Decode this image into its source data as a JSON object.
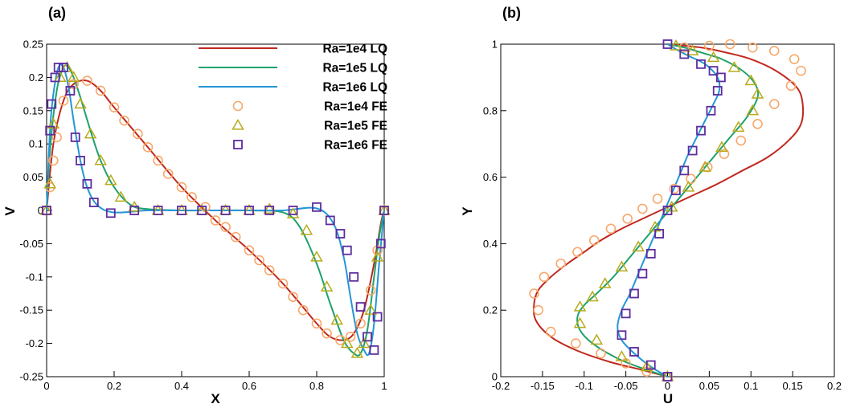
{
  "colors": {
    "red": "#c0281e",
    "green": "#1fa16b",
    "blue": "#2596d6",
    "orange": "#f6a86b",
    "olive": "#b8aa1a",
    "purple": "#5d2c9e"
  },
  "chart_data": [
    {
      "panel": "(a)",
      "type": "line",
      "xlabel": "X",
      "ylabel": "V",
      "xlim": [
        0,
        1
      ],
      "ylim": [
        -0.25,
        0.25
      ],
      "xticks": [
        "0",
        "0.2",
        "0.4",
        "0.6",
        "0.8",
        "1"
      ],
      "yticks": [
        "-0.25",
        "-0.2",
        "-0.15",
        "-0.1",
        "-0.05",
        "0",
        "0.05",
        "0.1",
        "0.15",
        "0.2",
        "0.25"
      ],
      "legend": {
        "position": "top-right",
        "entries": [
          "Ra=1e4 LQ",
          "Ra=1e5 LQ",
          "Ra=1e6 LQ",
          "Ra=1e4 FE",
          "Ra=1e5 FE",
          "Ra=1e6 FE"
        ]
      },
      "series": [
        {
          "name": "Ra=1e4 LQ",
          "kind": "line",
          "color_key": "red",
          "x": [
            0,
            0.02,
            0.05,
            0.08,
            0.12,
            0.16,
            0.2,
            0.3,
            0.4,
            0.5,
            0.6,
            0.7,
            0.8,
            0.84,
            0.88,
            0.91,
            0.94,
            0.97,
            0.99,
            1
          ],
          "y": [
            0,
            0.1,
            0.165,
            0.19,
            0.195,
            0.18,
            0.155,
            0.095,
            0.035,
            -0.015,
            -0.06,
            -0.11,
            -0.17,
            -0.19,
            -0.195,
            -0.185,
            -0.15,
            -0.08,
            -0.02,
            0
          ]
        },
        {
          "name": "Ra=1e5 LQ",
          "kind": "line",
          "color_key": "green",
          "x": [
            0,
            0.01,
            0.03,
            0.05,
            0.065,
            0.08,
            0.1,
            0.13,
            0.16,
            0.2,
            0.25,
            0.3,
            0.4,
            0.5,
            0.6,
            0.7,
            0.75,
            0.8,
            0.84,
            0.88,
            0.91,
            0.93,
            0.95,
            0.97,
            0.985,
            1
          ],
          "y": [
            0,
            0.09,
            0.18,
            0.215,
            0.215,
            0.2,
            0.17,
            0.12,
            0.075,
            0.035,
            0.008,
            0.002,
            0,
            0,
            0,
            -0.003,
            -0.025,
            -0.08,
            -0.14,
            -0.195,
            -0.215,
            -0.215,
            -0.18,
            -0.1,
            -0.04,
            0
          ]
        },
        {
          "name": "Ra=1e6 LQ",
          "kind": "line",
          "color_key": "blue",
          "x": [
            0,
            0.01,
            0.02,
            0.035,
            0.05,
            0.065,
            0.08,
            0.1,
            0.12,
            0.15,
            0.2,
            0.3,
            0.4,
            0.5,
            0.6,
            0.7,
            0.8,
            0.85,
            0.88,
            0.9,
            0.92,
            0.94,
            0.955,
            0.97,
            0.985,
            1
          ],
          "y": [
            0,
            0.12,
            0.175,
            0.215,
            0.215,
            0.185,
            0.135,
            0.075,
            0.035,
            0.008,
            -0.003,
            0,
            0,
            0,
            0,
            0,
            0.003,
            -0.02,
            -0.07,
            -0.13,
            -0.185,
            -0.21,
            -0.215,
            -0.17,
            -0.08,
            0
          ]
        },
        {
          "name": "Ra=1e4 FE",
          "kind": "marker",
          "marker": "circle",
          "color_key": "orange",
          "x": [
            0,
            0.01,
            0.02,
            0.03,
            0.05,
            0.08,
            0.12,
            0.16,
            0.2,
            0.23,
            0.27,
            0.3,
            0.33,
            0.36,
            0.4,
            0.43,
            0.47,
            0.5,
            0.53,
            0.56,
            0.6,
            0.63,
            0.66,
            0.7,
            0.73,
            0.76,
            0.8,
            0.83,
            0.87,
            0.9,
            0.93,
            0.96,
            0.98,
            1
          ],
          "y": [
            0,
            0.035,
            0.075,
            0.11,
            0.165,
            0.19,
            0.195,
            0.18,
            0.155,
            0.135,
            0.115,
            0.095,
            0.075,
            0.055,
            0.035,
            0.02,
            0.005,
            -0.015,
            -0.025,
            -0.04,
            -0.06,
            -0.075,
            -0.09,
            -0.11,
            -0.13,
            -0.15,
            -0.17,
            -0.185,
            -0.195,
            -0.19,
            -0.17,
            -0.12,
            -0.06,
            0
          ]
        },
        {
          "name": "Ra=1e5 FE",
          "kind": "marker",
          "marker": "triangle",
          "color_key": "olive",
          "x": [
            0,
            0.01,
            0.02,
            0.04,
            0.06,
            0.08,
            0.1,
            0.13,
            0.16,
            0.19,
            0.22,
            0.26,
            0.33,
            0.4,
            0.46,
            0.53,
            0.6,
            0.66,
            0.73,
            0.77,
            0.8,
            0.83,
            0.86,
            0.89,
            0.92,
            0.94,
            0.96,
            0.98,
            1
          ],
          "y": [
            0,
            0.04,
            0.13,
            0.2,
            0.215,
            0.2,
            0.16,
            0.115,
            0.075,
            0.045,
            0.02,
            0.005,
            0,
            0,
            0,
            0,
            0,
            0.002,
            -0.005,
            -0.03,
            -0.07,
            -0.115,
            -0.165,
            -0.2,
            -0.215,
            -0.2,
            -0.15,
            -0.07,
            0
          ]
        },
        {
          "name": "Ra=1e6 FE",
          "kind": "marker",
          "marker": "square",
          "color_key": "purple",
          "x": [
            0,
            0.01,
            0.015,
            0.025,
            0.035,
            0.05,
            0.07,
            0.085,
            0.1,
            0.12,
            0.14,
            0.19,
            0.26,
            0.33,
            0.4,
            0.46,
            0.53,
            0.6,
            0.66,
            0.73,
            0.8,
            0.84,
            0.87,
            0.89,
            0.91,
            0.93,
            0.95,
            0.97,
            0.98,
            0.99,
            1
          ],
          "y": [
            0,
            0.12,
            0.16,
            0.2,
            0.215,
            0.215,
            0.18,
            0.11,
            0.075,
            0.04,
            0.012,
            -0.004,
            0,
            0,
            0,
            0,
            0,
            0,
            0,
            0,
            0.005,
            -0.015,
            -0.035,
            -0.06,
            -0.1,
            -0.145,
            -0.19,
            -0.21,
            -0.16,
            -0.05,
            0
          ]
        }
      ]
    },
    {
      "panel": "(b)",
      "type": "line",
      "xlabel": "U",
      "ylabel": "Y",
      "xlim": [
        -0.2,
        0.2
      ],
      "ylim": [
        0,
        1
      ],
      "xticks": [
        "-0.2",
        "-0.15",
        "-0.1",
        "-0.05",
        "0",
        "0.05",
        "0.1",
        "0.15",
        "0.2"
      ],
      "yticks": [
        "0",
        "0.2",
        "0.4",
        "0.6",
        "0.8",
        "1"
      ],
      "series": [
        {
          "name": "Ra=1e4 LQ",
          "kind": "line",
          "color_key": "red",
          "x": [
            0,
            -0.03,
            -0.07,
            -0.11,
            -0.14,
            -0.158,
            -0.16,
            -0.155,
            -0.14,
            -0.12,
            -0.1,
            -0.08,
            -0.055,
            -0.03,
            0,
            0.03,
            0.06,
            0.09,
            0.12,
            0.145,
            0.16,
            0.162,
            0.155,
            0.13,
            0.1,
            0.07,
            0.04,
            0
          ],
          "y": [
            0,
            0.02,
            0.045,
            0.08,
            0.12,
            0.17,
            0.22,
            0.26,
            0.3,
            0.34,
            0.375,
            0.41,
            0.445,
            0.475,
            0.51,
            0.545,
            0.58,
            0.62,
            0.66,
            0.71,
            0.76,
            0.82,
            0.87,
            0.92,
            0.955,
            0.975,
            0.99,
            1
          ]
        },
        {
          "name": "Ra=1e5 LQ",
          "kind": "line",
          "color_key": "green",
          "x": [
            0,
            -0.03,
            -0.06,
            -0.09,
            -0.105,
            -0.108,
            -0.1,
            -0.085,
            -0.065,
            -0.045,
            -0.025,
            -0.005,
            0.015,
            0.035,
            0.055,
            0.075,
            0.095,
            0.108,
            0.105,
            0.09,
            0.065,
            0.04,
            0.02,
            0
          ],
          "y": [
            0,
            0.025,
            0.055,
            0.1,
            0.14,
            0.18,
            0.215,
            0.25,
            0.3,
            0.36,
            0.42,
            0.48,
            0.54,
            0.6,
            0.66,
            0.72,
            0.78,
            0.84,
            0.88,
            0.92,
            0.955,
            0.975,
            0.99,
            1
          ]
        },
        {
          "name": "Ra=1e6 LQ",
          "kind": "line",
          "color_key": "blue",
          "x": [
            0,
            -0.02,
            -0.04,
            -0.055,
            -0.06,
            -0.055,
            -0.045,
            -0.035,
            -0.025,
            -0.015,
            -0.005,
            0.005,
            0.015,
            0.025,
            0.035,
            0.045,
            0.055,
            0.062,
            0.06,
            0.045,
            0.025,
            0.01,
            0
          ],
          "y": [
            0,
            0.03,
            0.07,
            0.11,
            0.15,
            0.2,
            0.25,
            0.31,
            0.37,
            0.43,
            0.49,
            0.55,
            0.61,
            0.67,
            0.72,
            0.77,
            0.82,
            0.86,
            0.9,
            0.94,
            0.965,
            0.985,
            1
          ]
        },
        {
          "name": "Ra=1e4 FE",
          "kind": "marker",
          "marker": "circle",
          "color_key": "orange",
          "x": [
            0,
            -0.025,
            -0.05,
            -0.08,
            -0.11,
            -0.14,
            -0.155,
            -0.16,
            -0.148,
            -0.128,
            -0.108,
            -0.088,
            -0.068,
            -0.048,
            -0.03,
            -0.012,
            0.008,
            0.028,
            0.048,
            0.068,
            0.088,
            0.108,
            0.128,
            0.148,
            0.16,
            0.152,
            0.128,
            0.102,
            0.075,
            0.05,
            0.02
          ],
          "y": [
            0,
            0.015,
            0.04,
            0.07,
            0.1,
            0.135,
            0.2,
            0.25,
            0.3,
            0.34,
            0.375,
            0.41,
            0.445,
            0.475,
            0.505,
            0.535,
            0.565,
            0.595,
            0.63,
            0.67,
            0.71,
            0.76,
            0.82,
            0.875,
            0.92,
            0.955,
            0.98,
            0.99,
            1,
            0.995,
            0.99
          ]
        },
        {
          "name": "Ra=1e5 FE",
          "kind": "marker",
          "marker": "triangle",
          "color_key": "olive",
          "x": [
            0,
            -0.025,
            -0.055,
            -0.085,
            -0.105,
            -0.105,
            -0.09,
            -0.075,
            -0.055,
            -0.035,
            -0.015,
            0.005,
            0.025,
            0.045,
            0.065,
            0.085,
            0.102,
            0.108,
            0.1,
            0.08,
            0.055,
            0.03,
            0.01
          ],
          "y": [
            0,
            0.03,
            0.06,
            0.11,
            0.16,
            0.21,
            0.24,
            0.28,
            0.33,
            0.39,
            0.45,
            0.51,
            0.57,
            0.63,
            0.69,
            0.75,
            0.8,
            0.85,
            0.89,
            0.93,
            0.96,
            0.98,
            0.995
          ]
        },
        {
          "name": "Ra=1e6 FE",
          "kind": "marker",
          "marker": "square",
          "color_key": "purple",
          "x": [
            0,
            -0.02,
            -0.04,
            -0.055,
            -0.05,
            -0.04,
            -0.03,
            -0.02,
            -0.01,
            0,
            0.01,
            0.02,
            0.03,
            0.04,
            0.052,
            0.06,
            0.064,
            0.055,
            0.04,
            0.02,
            0
          ],
          "y": [
            0,
            0.035,
            0.075,
            0.125,
            0.19,
            0.25,
            0.31,
            0.37,
            0.43,
            0.5,
            0.56,
            0.62,
            0.68,
            0.74,
            0.8,
            0.86,
            0.9,
            0.92,
            0.94,
            0.97,
            1
          ]
        }
      ]
    }
  ]
}
